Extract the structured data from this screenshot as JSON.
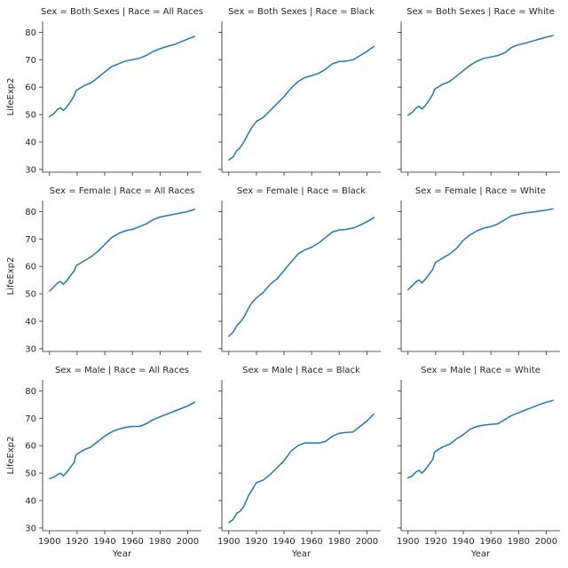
{
  "chart_data": {
    "type": "line",
    "layout": "facet-grid",
    "xlabel": "Year",
    "ylabel": "LifeExp2",
    "xlim": [
      1895,
      2010
    ],
    "ylim": [
      29,
      84
    ],
    "xticks": [
      1900,
      1920,
      1940,
      1960,
      1980,
      2000
    ],
    "yticks": [
      30,
      40,
      50,
      60,
      70,
      80
    ],
    "grid": false,
    "color": "#1f77b4",
    "facets": [
      {
        "title": "Sex = Both Sexes | Race = All Races",
        "x": [
          1900,
          1903,
          1906,
          1908,
          1910,
          1912,
          1915,
          1918,
          1919,
          1920,
          1925,
          1930,
          1935,
          1940,
          1945,
          1950,
          1955,
          1960,
          1965,
          1970,
          1975,
          1980,
          1985,
          1990,
          1995,
          2000,
          2005
        ],
        "y": [
          49.3,
          50.3,
          52.0,
          52.5,
          51.5,
          52.5,
          54.5,
          57.0,
          58.5,
          59.0,
          60.5,
          61.5,
          63.5,
          65.5,
          67.5,
          68.5,
          69.5,
          70.0,
          70.5,
          71.5,
          73.0,
          74.0,
          74.8,
          75.5,
          76.5,
          77.5,
          78.5
        ]
      },
      {
        "title": "Sex = Both Sexes | Race = Black",
        "x": [
          1900,
          1903,
          1906,
          1908,
          1911,
          1914,
          1917,
          1920,
          1925,
          1930,
          1935,
          1940,
          1945,
          1950,
          1955,
          1960,
          1965,
          1970,
          1975,
          1980,
          1985,
          1990,
          1995,
          2000,
          2005
        ],
        "y": [
          33.5,
          34.5,
          37.0,
          37.8,
          40.0,
          43.0,
          45.5,
          47.5,
          49.0,
          51.5,
          54.0,
          56.5,
          59.5,
          62.0,
          63.5,
          64.2,
          65.0,
          66.5,
          68.5,
          69.3,
          69.5,
          70.0,
          71.5,
          73.0,
          74.8
        ]
      },
      {
        "title": "Sex = Both Sexes | Race = White",
        "x": [
          1900,
          1903,
          1906,
          1908,
          1910,
          1912,
          1915,
          1918,
          1919,
          1920,
          1925,
          1930,
          1935,
          1940,
          1945,
          1950,
          1955,
          1960,
          1965,
          1970,
          1975,
          1980,
          1985,
          1990,
          1995,
          2000,
          2005
        ],
        "y": [
          49.8,
          50.8,
          52.5,
          53.0,
          52.0,
          53.0,
          55.0,
          57.5,
          59.0,
          59.5,
          61.0,
          62.0,
          64.0,
          66.0,
          68.0,
          69.5,
          70.5,
          71.0,
          71.5,
          72.5,
          74.5,
          75.5,
          76.0,
          76.8,
          77.5,
          78.2,
          78.8
        ]
      },
      {
        "title": "Sex = Female | Race = All Races",
        "x": [
          1900,
          1903,
          1906,
          1908,
          1910,
          1912,
          1915,
          1918,
          1919,
          1920,
          1925,
          1930,
          1935,
          1940,
          1945,
          1950,
          1955,
          1960,
          1965,
          1970,
          1975,
          1980,
          1985,
          1990,
          1995,
          2000,
          2005
        ],
        "y": [
          51.0,
          52.5,
          54.0,
          54.5,
          53.5,
          54.5,
          56.5,
          58.5,
          60.0,
          60.5,
          62.0,
          63.5,
          65.5,
          68.0,
          70.5,
          72.0,
          73.0,
          73.5,
          74.5,
          75.5,
          77.0,
          78.0,
          78.5,
          79.0,
          79.5,
          80.0,
          80.8
        ]
      },
      {
        "title": "Sex = Female | Race = Black",
        "x": [
          1900,
          1903,
          1906,
          1908,
          1911,
          1914,
          1917,
          1920,
          1925,
          1930,
          1935,
          1940,
          1945,
          1950,
          1955,
          1960,
          1965,
          1970,
          1975,
          1980,
          1985,
          1990,
          1995,
          2000,
          2005
        ],
        "y": [
          34.5,
          36.0,
          38.5,
          39.5,
          41.5,
          44.5,
          47.0,
          48.5,
          50.5,
          53.5,
          55.5,
          58.5,
          61.5,
          64.5,
          66.0,
          67.0,
          68.5,
          70.5,
          72.5,
          73.3,
          73.5,
          74.0,
          75.0,
          76.3,
          77.8
        ]
      },
      {
        "title": "Sex = Female | Race = White",
        "x": [
          1900,
          1903,
          1906,
          1908,
          1910,
          1912,
          1915,
          1918,
          1919,
          1920,
          1925,
          1930,
          1935,
          1940,
          1945,
          1950,
          1955,
          1960,
          1965,
          1970,
          1975,
          1980,
          1985,
          1990,
          1995,
          2000,
          2005
        ],
        "y": [
          51.5,
          53.0,
          54.5,
          55.0,
          54.0,
          55.0,
          57.0,
          59.0,
          60.5,
          61.5,
          63.0,
          64.5,
          66.5,
          69.5,
          71.5,
          73.0,
          74.0,
          74.5,
          75.5,
          77.0,
          78.5,
          79.0,
          79.5,
          79.8,
          80.2,
          80.5,
          81.0
        ]
      },
      {
        "title": "Sex = Male | Race = All Races",
        "x": [
          1900,
          1903,
          1906,
          1908,
          1910,
          1912,
          1915,
          1918,
          1919,
          1920,
          1925,
          1930,
          1935,
          1940,
          1945,
          1950,
          1955,
          1960,
          1965,
          1970,
          1975,
          1980,
          1985,
          1990,
          1995,
          2000,
          2005
        ],
        "y": [
          48.0,
          48.5,
          49.5,
          50.0,
          49.0,
          50.0,
          52.0,
          54.0,
          56.5,
          57.0,
          58.5,
          59.5,
          61.5,
          63.5,
          65.0,
          66.0,
          66.7,
          67.0,
          67.0,
          68.0,
          69.5,
          70.5,
          71.5,
          72.5,
          73.5,
          74.5,
          75.8
        ]
      },
      {
        "title": "Sex = Male | Race = Black",
        "x": [
          1900,
          1903,
          1906,
          1908,
          1911,
          1914,
          1917,
          1920,
          1925,
          1930,
          1935,
          1940,
          1945,
          1950,
          1955,
          1960,
          1965,
          1970,
          1975,
          1980,
          1985,
          1990,
          1995,
          2000,
          2005
        ],
        "y": [
          32.0,
          33.0,
          35.5,
          36.0,
          38.0,
          41.5,
          44.0,
          46.5,
          47.5,
          49.5,
          52.0,
          54.5,
          58.0,
          60.0,
          61.0,
          61.0,
          61.0,
          61.5,
          63.5,
          64.5,
          64.8,
          65.0,
          67.0,
          69.0,
          71.5
        ]
      },
      {
        "title": "Sex = Male | Race = White",
        "x": [
          1900,
          1903,
          1906,
          1908,
          1910,
          1912,
          1915,
          1918,
          1919,
          1920,
          1925,
          1930,
          1935,
          1940,
          1945,
          1950,
          1955,
          1960,
          1965,
          1970,
          1975,
          1980,
          1985,
          1990,
          1995,
          2000,
          2005
        ],
        "y": [
          48.3,
          49.0,
          50.5,
          51.0,
          50.0,
          51.0,
          53.0,
          55.0,
          57.5,
          58.0,
          59.5,
          60.5,
          62.5,
          64.0,
          66.0,
          67.0,
          67.5,
          67.8,
          68.0,
          69.5,
          71.0,
          72.0,
          73.0,
          74.0,
          75.0,
          75.8,
          76.5
        ]
      }
    ]
  }
}
